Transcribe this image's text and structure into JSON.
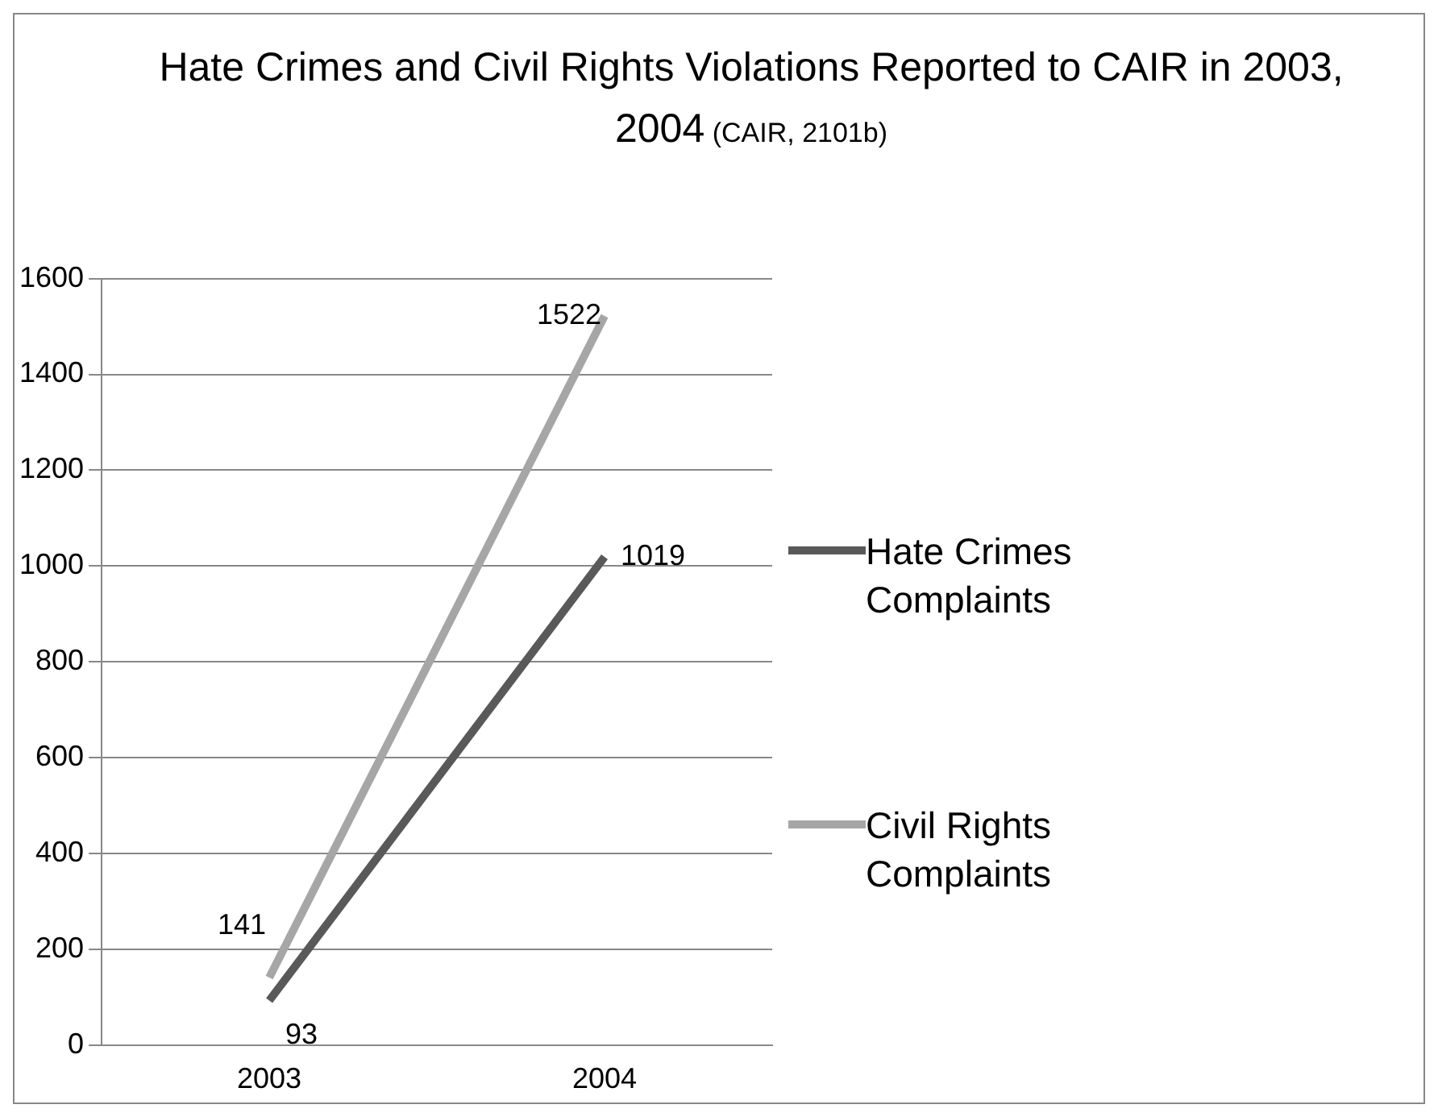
{
  "chart_data": {
    "type": "line",
    "title": "Hate Crimes and Civil Rights Violations Reported to CAIR in 2003, 2004",
    "subtitle": "(CAIR, 2101b)",
    "categories": [
      "2003",
      "2004"
    ],
    "series": [
      {
        "name": "Hate Crimes Complaints",
        "color": "#595959",
        "values": [
          93,
          1019
        ]
      },
      {
        "name": "Civil Rights Complaints",
        "color": "#a6a6a6",
        "values": [
          141,
          1522
        ]
      }
    ],
    "ylim": [
      0,
      1600
    ],
    "yticks": [
      0,
      200,
      400,
      600,
      800,
      1000,
      1200,
      1400,
      1600
    ],
    "grid": "y",
    "legend": "right",
    "data_labels": true,
    "marker": "none",
    "line_style": "solid"
  }
}
